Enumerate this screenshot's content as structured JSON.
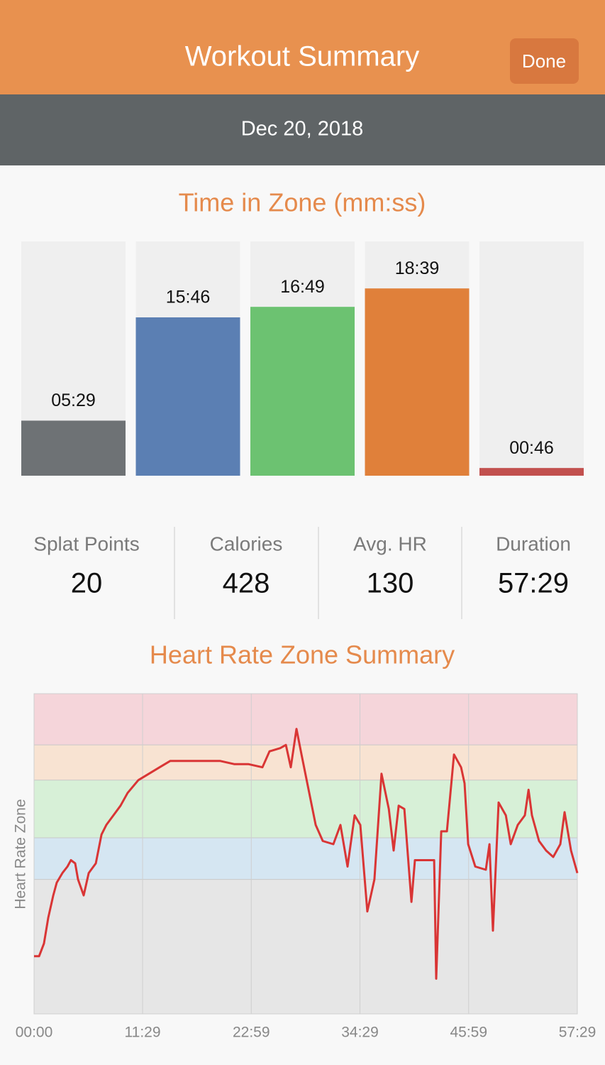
{
  "header": {
    "title": "Workout Summary",
    "button": "Done"
  },
  "date": "Dec 20, 2018",
  "stats": [
    {
      "label": "Splat Points",
      "value": "20"
    },
    {
      "label": "Calories",
      "value": "428"
    },
    {
      "label": "Avg. HR",
      "value": "130"
    },
    {
      "label": "Duration",
      "value": "57:29"
    }
  ],
  "chart_data": [
    {
      "type": "bar",
      "title": "Time in Zone (mm:ss)",
      "values": [
        329,
        946,
        1009,
        1119,
        46
      ],
      "value_labels": [
        "05:29",
        "15:46",
        "16:49",
        "18:39",
        "00:46"
      ],
      "colors": [
        "#6e7275",
        "#5b7fb3",
        "#6cc271",
        "#e0803a",
        "#c2504e"
      ],
      "ylim": [
        0,
        1400
      ]
    },
    {
      "type": "line",
      "title": "Heart Rate Zone Summary",
      "ylabel": "Heart Rate Zone",
      "color": "#d93535",
      "xlim": [
        0,
        3449
      ],
      "xticks": [
        {
          "value": 0,
          "label": "00:00"
        },
        {
          "value": 689,
          "label": "11:29"
        },
        {
          "value": 1379,
          "label": "22:59"
        },
        {
          "value": 2069,
          "label": "34:29"
        },
        {
          "value": 2759,
          "label": "45:59"
        },
        {
          "value": 3449,
          "label": "57:29"
        }
      ],
      "ylim": [
        0,
        100
      ],
      "bands": [
        {
          "from": 0,
          "to": 42,
          "color": "#e6e6e6"
        },
        {
          "from": 42,
          "to": 55,
          "color": "#d5e6f2"
        },
        {
          "from": 55,
          "to": 73,
          "color": "#d7f0d7"
        },
        {
          "from": 73,
          "to": 84,
          "color": "#f8e3d2"
        },
        {
          "from": 84,
          "to": 100,
          "color": "#f5d5da"
        }
      ],
      "grid": true,
      "x": [
        0,
        32,
        63,
        90,
        122,
        144,
        180,
        212,
        234,
        261,
        279,
        315,
        347,
        392,
        428,
        459,
        504,
        549,
        594,
        662,
        729,
        797,
        865,
        954,
        1067,
        1180,
        1270,
        1360,
        1450,
        1495,
        1563,
        1599,
        1630,
        1666,
        1698,
        1743,
        1788,
        1833,
        1900,
        1945,
        1990,
        2035,
        2071,
        2116,
        2161,
        2206,
        2252,
        2283,
        2315,
        2351,
        2396,
        2418,
        2540,
        2553,
        2585,
        2621,
        2666,
        2711,
        2733,
        2756,
        2801,
        2868,
        2891,
        2913,
        2949,
        2995,
        3026,
        3071,
        3116,
        3139,
        3161,
        3206,
        3251,
        3296,
        3341,
        3368,
        3409,
        3449
      ],
      "values": [
        18,
        18,
        22,
        30,
        37,
        41,
        44,
        46,
        48,
        47,
        42,
        37,
        44,
        47,
        56,
        59,
        62,
        65,
        69,
        73,
        75,
        77,
        79,
        79,
        79,
        79,
        78,
        78,
        77,
        82,
        83,
        84,
        77,
        89,
        81,
        70,
        59,
        54,
        53,
        59,
        46,
        62,
        59,
        32,
        42,
        75,
        64,
        51,
        65,
        64,
        35,
        48,
        48,
        11,
        57,
        57,
        81,
        77,
        72,
        53,
        46,
        45,
        53,
        26,
        66,
        62,
        53,
        59,
        62,
        70,
        62,
        54,
        51,
        49,
        53,
        63,
        51,
        44
      ]
    }
  ]
}
